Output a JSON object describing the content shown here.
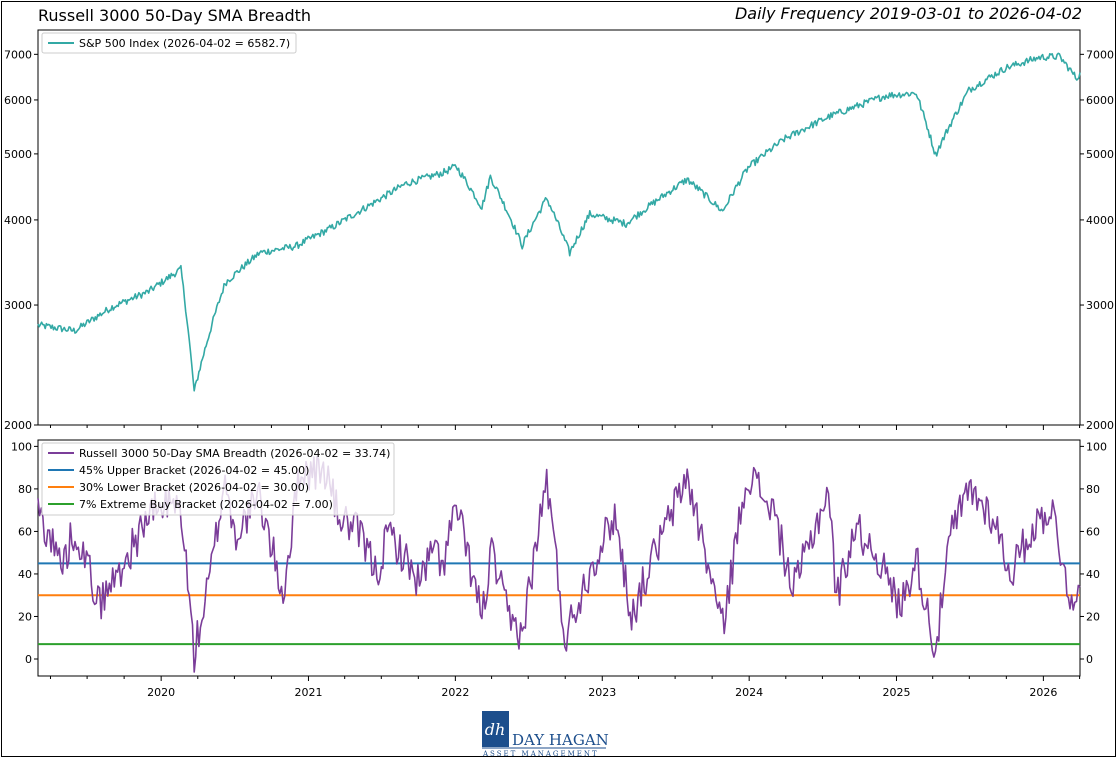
{
  "header": {
    "title": "Russell 3000 50-Day SMA Breadth",
    "subtitle": "Daily Frequency 2019-03-01 to 2026-04-02"
  },
  "logo": {
    "mark": "dh",
    "name": "DAY HAGAN",
    "tagline": "ASSET MANAGEMENT"
  },
  "colors": {
    "sp500": "#33a9a5",
    "breadth": "#7b3d99",
    "upper": "#1f77b4",
    "lower": "#ff7f0e",
    "extreme": "#2ca02c"
  },
  "chart_data": [
    {
      "type": "line",
      "panel": "top",
      "yscale": "log",
      "ylim": [
        2000,
        7600
      ],
      "xlim": [
        "2019-03-01",
        "2026-04-02"
      ],
      "yticks": [
        2000,
        3000,
        4000,
        5000,
        6000,
        7000
      ],
      "grid": false,
      "legend_position": "top-left",
      "series": [
        {
          "name": "S&P 500 Index (2026-04-02 = 6582.7)",
          "x": [
            "2019-03-01",
            "2019-06-01",
            "2019-09-01",
            "2019-12-01",
            "2020-02-19",
            "2020-03-23",
            "2020-06-08",
            "2020-09-02",
            "2020-12-01",
            "2021-03-01",
            "2021-06-01",
            "2021-09-01",
            "2021-12-01",
            "2022-01-03",
            "2022-03-08",
            "2022-03-29",
            "2022-06-16",
            "2022-08-16",
            "2022-10-12",
            "2022-12-01",
            "2023-03-01",
            "2023-07-31",
            "2023-10-27",
            "2023-12-29",
            "2024-03-28",
            "2024-07-16",
            "2024-12-06",
            "2025-02-19",
            "2025-04-08",
            "2025-06-30",
            "2025-09-30",
            "2025-12-24",
            "2026-02-10",
            "2026-03-25",
            "2026-04-02"
          ],
          "y": [
            2803,
            2750,
            2980,
            3140,
            3386,
            2237,
            3232,
            3580,
            3660,
            3901,
            4200,
            4524,
            4690,
            4796,
            4170,
            4631,
            3667,
            4305,
            3577,
            4080,
            3950,
            4588,
            4117,
            4770,
            5254,
            5667,
            6090,
            6144,
            4982,
            6205,
            6688,
            6932,
            6950,
            6450,
            6582.7
          ]
        }
      ],
      "ytick_labels": [
        "2000",
        "3000",
        "4000",
        "5000",
        "6000",
        "7000"
      ]
    },
    {
      "type": "line",
      "panel": "bottom",
      "ylim": [
        -8,
        103
      ],
      "xlim": [
        "2019-03-01",
        "2026-04-02"
      ],
      "yticks": [
        0,
        20,
        40,
        60,
        80,
        100
      ],
      "ytick_labels": [
        "0",
        "20",
        "40",
        "60",
        "80",
        "100"
      ],
      "xtick_labels": [
        "2020",
        "2021",
        "2022",
        "2023",
        "2024",
        "2025",
        "2026"
      ],
      "grid": false,
      "legend_position": "top-left",
      "series": [
        {
          "name": "Russell 3000 50-Day SMA Breadth (2026-04-02 = 33.74)",
          "x": [
            "2019-03-01",
            "2019-05-01",
            "2019-06-01",
            "2019-08-01",
            "2019-10-01",
            "2019-12-01",
            "2020-01-20",
            "2020-02-20",
            "2020-03-23",
            "2020-05-01",
            "2020-06-08",
            "2020-07-01",
            "2020-09-01",
            "2020-10-30",
            "2020-12-10",
            "2021-02-15",
            "2021-03-15",
            "2021-05-10",
            "2021-06-20",
            "2021-07-20",
            "2021-09-01",
            "2021-10-04",
            "2021-11-08",
            "2021-12-01",
            "2022-01-03",
            "2022-03-08",
            "2022-04-01",
            "2022-05-15",
            "2022-06-16",
            "2022-08-16",
            "2022-09-30",
            "2022-12-01",
            "2023-02-01",
            "2023-03-15",
            "2023-05-01",
            "2023-07-31",
            "2023-10-27",
            "2023-12-27",
            "2024-03-01",
            "2024-04-19",
            "2024-07-16",
            "2024-08-05",
            "2024-09-20",
            "2024-11-11",
            "2025-01-10",
            "2025-02-19",
            "2025-04-08",
            "2025-05-15",
            "2025-07-01",
            "2025-09-01",
            "2025-10-10",
            "2025-12-01",
            "2026-01-20",
            "2026-03-20",
            "2026-04-02"
          ],
          "y": [
            70,
            44,
            62,
            26,
            45,
            68,
            73,
            70,
            2,
            38,
            86,
            58,
            76,
            30,
            88,
            88,
            68,
            58,
            40,
            60,
            46,
            36,
            52,
            44,
            72,
            20,
            50,
            18,
            12,
            85,
            10,
            42,
            68,
            20,
            45,
            86,
            15,
            88,
            70,
            32,
            80,
            28,
            62,
            50,
            24,
            48,
            4,
            58,
            80,
            66,
            40,
            60,
            72,
            20,
            33.74
          ]
        },
        {
          "name": "45% Upper Bracket (2026-04-02 = 45.00)",
          "x": [
            "2019-03-01",
            "2026-04-02"
          ],
          "y": [
            45,
            45
          ]
        },
        {
          "name": "30% Lower Bracket (2026-04-02 = 30.00)",
          "x": [
            "2019-03-01",
            "2026-04-02"
          ],
          "y": [
            30,
            30
          ]
        },
        {
          "name": "7% Extreme Buy Bracket (2026-04-02 = 7.00)",
          "x": [
            "2019-03-01",
            "2026-04-02"
          ],
          "y": [
            7,
            7
          ]
        }
      ]
    }
  ]
}
